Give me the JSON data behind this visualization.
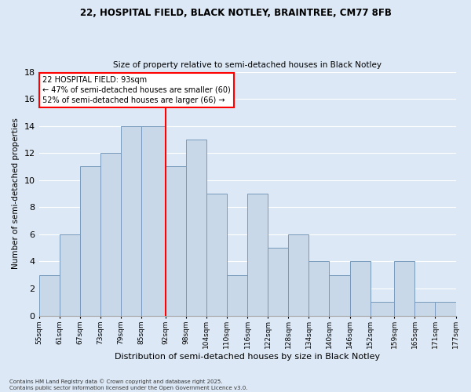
{
  "title1": "22, HOSPITAL FIELD, BLACK NOTLEY, BRAINTREE, CM77 8FB",
  "title2": "Size of property relative to semi-detached houses in Black Notley",
  "xlabel": "Distribution of semi-detached houses by size in Black Notley",
  "ylabel": "Number of semi-detached properties",
  "bin_edges": [
    55,
    61,
    67,
    73,
    79,
    85,
    92,
    98,
    104,
    110,
    116,
    122,
    128,
    134,
    140,
    146,
    152,
    159,
    165,
    171,
    177
  ],
  "counts": [
    3,
    6,
    11,
    12,
    14,
    14,
    11,
    13,
    9,
    3,
    9,
    5,
    6,
    4,
    3,
    4,
    1,
    4,
    1,
    1
  ],
  "bar_color": "#c8d8e8",
  "bar_edge_color": "#7799bb",
  "vline_x": 92,
  "vline_color": "red",
  "annotation_title": "22 HOSPITAL FIELD: 93sqm",
  "annotation_line1": "← 47% of semi-detached houses are smaller (60)",
  "annotation_line2": "52% of semi-detached houses are larger (66) →",
  "box_color": "white",
  "box_edge_color": "red",
  "background_color": "#dce8f5",
  "ylim": [
    0,
    18
  ],
  "yticks": [
    0,
    2,
    4,
    6,
    8,
    10,
    12,
    14,
    16,
    18
  ],
  "tick_labels": [
    "55sqm",
    "61sqm",
    "67sqm",
    "73sqm",
    "79sqm",
    "85sqm",
    "92sqm",
    "98sqm",
    "104sqm",
    "110sqm",
    "116sqm",
    "122sqm",
    "128sqm",
    "134sqm",
    "140sqm",
    "146sqm",
    "152sqm",
    "159sqm",
    "165sqm",
    "171sqm",
    "177sqm"
  ],
  "footnote1": "Contains HM Land Registry data © Crown copyright and database right 2025.",
  "footnote2": "Contains public sector information licensed under the Open Government Licence v3.0."
}
